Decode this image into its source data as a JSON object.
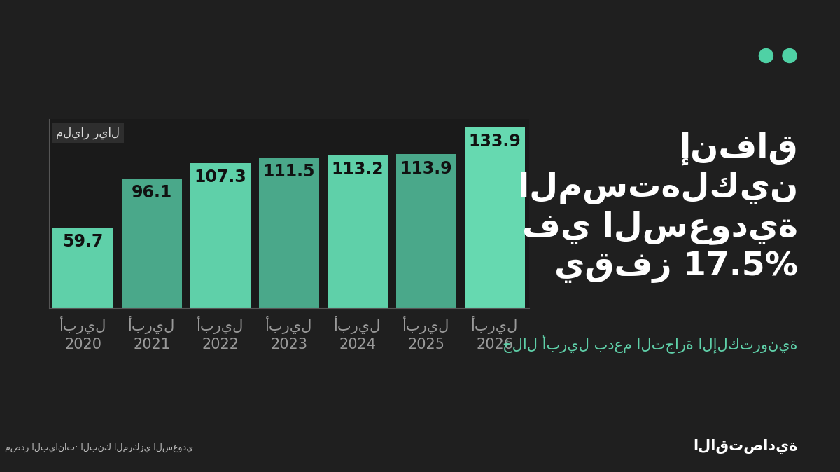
{
  "chart_data": {
    "type": "bar",
    "title": "إنفاق\nالمستهلكين\nفي السعودية\nيقفز 17.5%",
    "subtitle": "خلال أبريل بدعم التجارة الإلكترونية",
    "unit": "مليار ريال",
    "source": "مصدر البيانات: البنك المركزي السعودي",
    "brand": "الاقتصادية",
    "categories": [
      "أبريل\n2020",
      "أبريل\n2021",
      "أبريل\n2022",
      "أبريل\n2023",
      "أبريل\n2024",
      "أبريل\n2025",
      "أبريل\n2026"
    ],
    "values": [
      59.7,
      96.1,
      107.3,
      111.5,
      113.2,
      113.9,
      133.9
    ],
    "colors": [
      "#5fd0a9",
      "#4aa88a",
      "#5fd0a9",
      "#4aa88a",
      "#5fd0a9",
      "#4aa88a",
      "#66d9b0"
    ],
    "ylim": [
      0,
      140
    ],
    "data_labels": true,
    "tick_labels": "x",
    "grid": false
  }
}
